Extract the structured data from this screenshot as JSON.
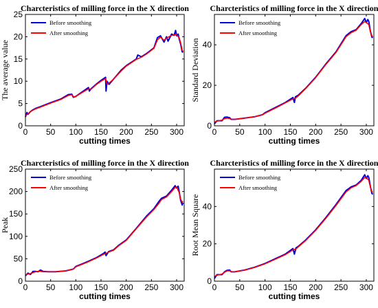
{
  "colors": {
    "before": "#0000dd",
    "after": "#ff0000"
  },
  "chart_data": [
    {
      "type": "line",
      "title": "Charcteristics of milling force in the X direction",
      "xlabel": "cutting times",
      "ylabel": "The average value",
      "xlim": [
        0,
        315
      ],
      "ylim": [
        0,
        25
      ],
      "xticks": [
        0,
        50,
        100,
        150,
        200,
        250,
        300
      ],
      "yticks": [
        0,
        5,
        10,
        15,
        20,
        25
      ],
      "grid": false,
      "legend": "top-left",
      "series": [
        {
          "name": "Before smoothing",
          "color": "#0000dd",
          "x": [
            0,
            3,
            5,
            10,
            15,
            20,
            30,
            50,
            70,
            85,
            92,
            95,
            100,
            110,
            125,
            127,
            130,
            140,
            150,
            159,
            160,
            162,
            166,
            175,
            190,
            200,
            220,
            223,
            230,
            240,
            255,
            262,
            268,
            275,
            280,
            283,
            290,
            295,
            298,
            300,
            303,
            305,
            308,
            311,
            313
          ],
          "y": [
            2.0,
            3.0,
            2.6,
            3.2,
            3.6,
            3.9,
            4.3,
            5.2,
            6.0,
            7.0,
            7.1,
            6.4,
            6.6,
            7.4,
            8.6,
            7.8,
            8.3,
            9.3,
            10.2,
            10.9,
            7.8,
            10.0,
            9.3,
            10.5,
            12.5,
            13.5,
            15.0,
            15.9,
            15.5,
            16.2,
            17.5,
            19.8,
            20.2,
            18.8,
            20.0,
            19.0,
            20.6,
            20.3,
            21.4,
            20.2,
            20.6,
            19.5,
            18.3,
            16.6,
            16.5
          ]
        },
        {
          "name": "After smoothing",
          "color": "#ff0000",
          "x": [
            0,
            5,
            10,
            15,
            20,
            30,
            50,
            70,
            85,
            92,
            95,
            100,
            110,
            125,
            130,
            140,
            150,
            159,
            162,
            166,
            175,
            190,
            200,
            220,
            230,
            240,
            255,
            262,
            268,
            275,
            280,
            290,
            295,
            300,
            305,
            308,
            311,
            313
          ],
          "y": [
            2.3,
            2.7,
            3.2,
            3.5,
            3.8,
            4.2,
            5.1,
            5.9,
            6.8,
            7.0,
            6.5,
            6.6,
            7.3,
            8.3,
            8.2,
            9.2,
            10.0,
            10.6,
            9.3,
            9.6,
            10.5,
            12.3,
            13.4,
            14.9,
            15.4,
            16.1,
            17.4,
            19.3,
            19.9,
            19.2,
            19.7,
            20.3,
            20.4,
            20.4,
            19.8,
            18.6,
            17.0,
            16.6
          ]
        }
      ]
    },
    {
      "type": "line",
      "title": "Charcteristics of milling force in the X direction",
      "xlabel": "cutting times",
      "ylabel": "Standard Deviation",
      "xlim": [
        0,
        315
      ],
      "ylim": [
        0,
        55
      ],
      "xticks": [
        0,
        50,
        100,
        150,
        200,
        250,
        300
      ],
      "yticks": [
        0,
        20,
        40
      ],
      "grid": false,
      "legend": "top-left",
      "series": [
        {
          "name": "Before smoothing",
          "color": "#0000dd",
          "x": [
            0,
            5,
            15,
            20,
            25,
            30,
            33,
            40,
            60,
            80,
            95,
            100,
            120,
            140,
            155,
            158,
            160,
            165,
            180,
            200,
            220,
            240,
            260,
            270,
            280,
            290,
            297,
            300,
            303,
            305,
            308,
            311,
            313
          ],
          "y": [
            1.0,
            2.5,
            2.5,
            4.2,
            4.3,
            4.0,
            3.2,
            3.2,
            3.8,
            4.5,
            5.5,
            6.5,
            9.0,
            11.5,
            14.0,
            11.5,
            14.3,
            15.0,
            18.5,
            24.0,
            30.5,
            36.5,
            44.5,
            46.5,
            47.5,
            50.5,
            53.0,
            51.0,
            52.5,
            51.5,
            47.0,
            43.8,
            43.5
          ]
        },
        {
          "name": "After smoothing",
          "color": "#ff0000",
          "x": [
            0,
            5,
            15,
            20,
            25,
            30,
            33,
            40,
            60,
            80,
            95,
            100,
            120,
            140,
            155,
            160,
            165,
            180,
            200,
            220,
            240,
            260,
            270,
            280,
            290,
            297,
            300,
            305,
            308,
            311,
            313
          ],
          "y": [
            1.8,
            2.3,
            2.8,
            3.5,
            3.8,
            3.6,
            3.2,
            3.2,
            3.8,
            4.5,
            5.4,
            6.2,
            8.7,
            11.3,
            13.3,
            13.6,
            14.6,
            18.3,
            23.8,
            30.2,
            36.2,
            44.0,
            46.0,
            47.2,
            50.0,
            51.5,
            51.0,
            50.0,
            46.5,
            44.5,
            44.0
          ]
        }
      ]
    },
    {
      "type": "line",
      "title": "Charcteristics of milling force in the X direction",
      "xlabel": "cutting times",
      "ylabel": "Peak",
      "xlim": [
        0,
        315
      ],
      "ylim": [
        0,
        250
      ],
      "xticks": [
        0,
        50,
        100,
        150,
        200,
        250,
        300
      ],
      "yticks": [
        0,
        50,
        100,
        150,
        200,
        250
      ],
      "grid": false,
      "legend": "top-left",
      "series": [
        {
          "name": "Before smoothing",
          "color": "#0000dd",
          "x": [
            0,
            5,
            10,
            15,
            20,
            25,
            30,
            35,
            45,
            60,
            80,
            95,
            100,
            120,
            140,
            155,
            158,
            160,
            165,
            175,
            185,
            200,
            220,
            240,
            255,
            265,
            270,
            280,
            290,
            297,
            300,
            303,
            305,
            308,
            311,
            313
          ],
          "y": [
            12,
            18,
            15,
            22,
            22,
            21,
            25,
            22,
            21,
            21,
            23,
            27,
            33,
            42,
            52,
            62,
            65,
            57,
            66,
            70,
            80,
            92,
            118,
            145,
            162,
            178,
            185,
            190,
            203,
            213,
            208,
            212,
            200,
            180,
            170,
            175
          ]
        },
        {
          "name": "After smoothing",
          "color": "#ff0000",
          "x": [
            0,
            5,
            10,
            15,
            20,
            25,
            30,
            35,
            45,
            60,
            80,
            95,
            100,
            120,
            140,
            155,
            160,
            165,
            175,
            185,
            200,
            220,
            240,
            255,
            265,
            270,
            280,
            290,
            297,
            300,
            305,
            308,
            311,
            313
          ],
          "y": [
            14,
            16,
            17,
            19,
            21,
            22,
            22,
            21,
            21,
            21,
            23,
            27,
            32,
            41,
            51,
            60,
            62,
            65,
            69,
            79,
            91,
            117,
            143,
            160,
            174,
            182,
            188,
            200,
            209,
            210,
            198,
            183,
            176,
            178
          ]
        }
      ]
    },
    {
      "type": "line",
      "title": "Charcteristics of milling force in the X direction",
      "xlabel": "cutting times",
      "ylabel": "Root Mean Square",
      "xlim": [
        0,
        315
      ],
      "ylim": [
        0,
        60
      ],
      "xticks": [
        0,
        50,
        100,
        150,
        200,
        250,
        300
      ],
      "yticks": [
        0,
        20,
        40
      ],
      "grid": false,
      "legend": "top-left",
      "series": [
        {
          "name": "Before smoothing",
          "color": "#0000dd",
          "x": [
            0,
            5,
            15,
            20,
            25,
            30,
            33,
            40,
            60,
            80,
            100,
            120,
            140,
            155,
            158,
            161,
            165,
            180,
            200,
            220,
            240,
            260,
            270,
            280,
            290,
            297,
            300,
            303,
            305,
            308,
            311,
            313
          ],
          "y": [
            1.5,
            3.5,
            3.5,
            5.0,
            5.8,
            6.0,
            5.0,
            5.0,
            6.0,
            7.5,
            9.5,
            12.0,
            14.5,
            17.5,
            14.5,
            17.8,
            18.5,
            22.0,
            27.5,
            34.0,
            41.0,
            48.5,
            50.5,
            51.5,
            54.0,
            57.0,
            55.0,
            56.5,
            55.5,
            51.0,
            47.0,
            46.5
          ]
        },
        {
          "name": "After smoothing",
          "color": "#ff0000",
          "x": [
            0,
            5,
            15,
            20,
            25,
            30,
            33,
            40,
            60,
            80,
            100,
            120,
            140,
            155,
            161,
            165,
            180,
            200,
            220,
            240,
            260,
            270,
            280,
            290,
            297,
            300,
            305,
            308,
            311,
            313
          ],
          "y": [
            2.5,
            3.2,
            3.8,
            4.8,
            5.5,
            5.6,
            5.1,
            5.0,
            5.9,
            7.4,
            9.3,
            11.7,
            14.2,
            16.8,
            17.2,
            18.2,
            21.7,
            27.2,
            33.6,
            40.5,
            47.8,
            50.0,
            51.2,
            53.5,
            55.5,
            55.5,
            54.0,
            50.5,
            48.0,
            47.5
          ]
        }
      ]
    }
  ]
}
